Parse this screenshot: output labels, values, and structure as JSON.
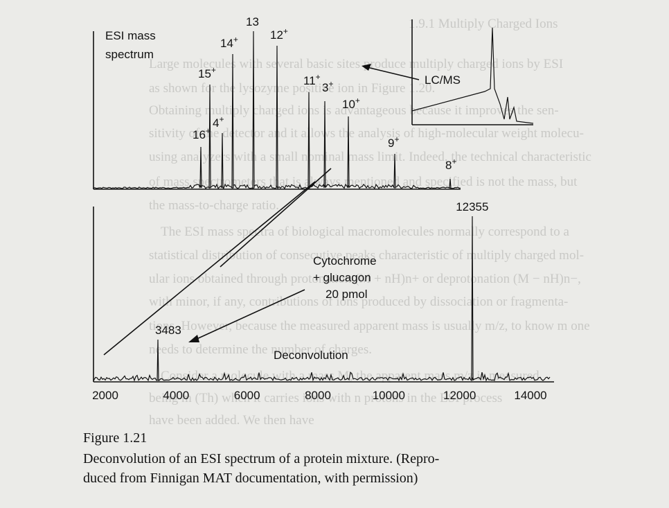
{
  "background_text": [
    "1.9.1 Multiply Charged Ions",
    "Large molecules with several basic sites produce multiply charged ions by ESI",
    "as shown for the lysozyme positive ion in Figure 1.20.",
    "Obtaining multiply charged ions is advantageous because it improves the sen-",
    "sitivity of the detector and it allows the analysis of high-molecular weight molecu-",
    "using analyzers with a small nominal mass limit. Indeed, the technical characteristic",
    "of mass spectrometers that is always mentioned and specified is not the mass, but",
    "the mass-to-charge ratio.",
    "The ESI mass spectra of biological macromolecules normally correspond to a",
    "statistical distribution of consecutive peaks characteristic of multiply charged mol-",
    "ular ions obtained through protonation (M + nH)n+ or deprotonation (M − nH)n−,",
    "with minor, if any, contributions of ions produced by dissociation or fragmenta-",
    "tions. However, because the measured apparent mass is usually m/z, to know m one",
    "needs to determine the number of charges.",
    "Consider a molecule with a mass M; the apparent mass m/z is measured",
    "being m (Th) when it carries ions with n protons in the ESI process",
    "have been added. We then have"
  ],
  "figure": {
    "esi_label": [
      "ESI mass",
      "spectrum"
    ],
    "lcms_label": "LC/MS",
    "charge_labels": [
      {
        "number": "16",
        "charge": "+"
      },
      {
        "number": "15",
        "charge": "+"
      },
      {
        "number": "4",
        "charge": "+"
      },
      {
        "number": "14",
        "charge": "+"
      },
      {
        "number": "13"
      },
      {
        "number": "12",
        "charge": "+"
      },
      {
        "number": "11",
        "charge": "+"
      },
      {
        "number": "3",
        "charge": "+"
      },
      {
        "number": "10",
        "charge": "+"
      },
      {
        "number": "9",
        "charge": "+"
      },
      {
        "number": "8",
        "charge": "+"
      }
    ],
    "sample_label": [
      "Cytochrome",
      "+ glucagon",
      "20 pmol"
    ],
    "peak_labels": [
      3483,
      12355
    ],
    "deconvolution_label": "Deconvolution",
    "x_ticks": [
      2000,
      4000,
      6000,
      8000,
      10000,
      12000,
      14000
    ]
  },
  "caption": {
    "label": "Figure 1.21",
    "lines": [
      "Deconvolution of an ESI spectrum of a protein mixture. (Repro-",
      "duced from Finnigan MAT documentation, with permission)"
    ]
  }
}
